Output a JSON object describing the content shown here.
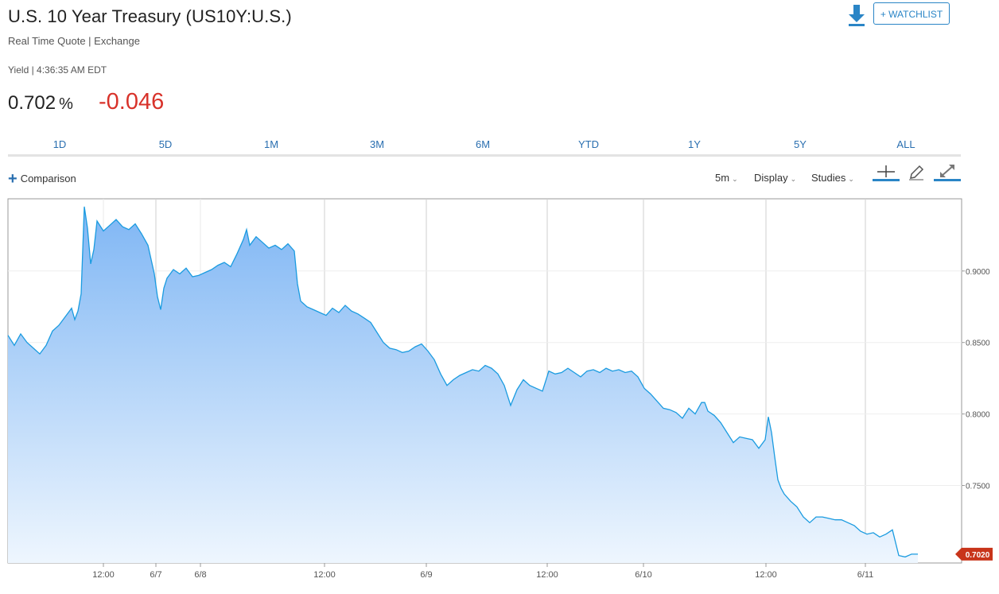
{
  "header": {
    "title": "U.S. 10 Year Treasury (US10Y:U.S.)",
    "subtitle": "Real Time Quote | Exchange",
    "yield_line": "Yield | 4:36:35 AM EDT",
    "price": "0.702",
    "price_unit": "%",
    "change": "-0.046",
    "change_color": "#d8322a",
    "watchlist_label": "+ WATCHLIST",
    "download_icon": "download-icon"
  },
  "ranges": [
    "1D",
    "5D",
    "1M",
    "3M",
    "6M",
    "YTD",
    "1Y",
    "5Y",
    "ALL"
  ],
  "toolbar": {
    "comparison_label": "Comparison",
    "interval_label": "5m",
    "display_label": "Display",
    "studies_label": "Studies",
    "icons": [
      "crosshair-icon",
      "draw-pencil-icon",
      "expand-icon"
    ]
  },
  "chart_data": {
    "type": "area",
    "series": [
      {
        "name": "US10Y",
        "color": "#1a9be0"
      }
    ],
    "x_tick_labels": [
      "12:00",
      "6/7",
      "6/8",
      "12:00",
      "6/9",
      "12:00",
      "6/10",
      "12:00",
      "6/11"
    ],
    "y_tick_labels": [
      "0.9000",
      "0.8500",
      "0.8000",
      "0.7500"
    ],
    "ylim": [
      0.6958,
      0.9505
    ],
    "last_value_label": "0.7020",
    "last_value": 0.702,
    "last_label_color": "#c8341a",
    "points": [
      [
        0,
        0.855
      ],
      [
        2,
        0.848
      ],
      [
        4,
        0.856
      ],
      [
        6,
        0.85
      ],
      [
        8,
        0.846
      ],
      [
        10,
        0.842
      ],
      [
        12,
        0.848
      ],
      [
        14,
        0.858
      ],
      [
        16,
        0.862
      ],
      [
        18,
        0.868
      ],
      [
        20,
        0.874
      ],
      [
        21,
        0.866
      ],
      [
        22,
        0.872
      ],
      [
        23,
        0.884
      ],
      [
        24,
        0.945
      ],
      [
        25,
        0.93
      ],
      [
        26,
        0.905
      ],
      [
        27,
        0.915
      ],
      [
        28,
        0.935
      ],
      [
        30,
        0.928
      ],
      [
        32,
        0.932
      ],
      [
        34,
        0.936
      ],
      [
        36,
        0.931
      ],
      [
        38,
        0.929
      ],
      [
        40,
        0.933
      ],
      [
        42,
        0.926
      ],
      [
        44,
        0.918
      ],
      [
        46,
        0.898
      ],
      [
        47,
        0.882
      ],
      [
        48,
        0.873
      ],
      [
        49,
        0.888
      ],
      [
        50,
        0.895
      ],
      [
        52,
        0.901
      ],
      [
        54,
        0.898
      ],
      [
        56,
        0.902
      ],
      [
        58,
        0.896
      ],
      [
        60,
        0.897
      ],
      [
        62,
        0.899
      ],
      [
        64,
        0.901
      ],
      [
        66,
        0.904
      ],
      [
        68,
        0.906
      ],
      [
        70,
        0.903
      ],
      [
        72,
        0.912
      ],
      [
        74,
        0.922
      ],
      [
        75,
        0.929
      ],
      [
        76,
        0.918
      ],
      [
        78,
        0.924
      ],
      [
        80,
        0.92
      ],
      [
        82,
        0.916
      ],
      [
        84,
        0.918
      ],
      [
        86,
        0.915
      ],
      [
        88,
        0.919
      ],
      [
        90,
        0.914
      ],
      [
        91,
        0.891
      ],
      [
        92,
        0.879
      ],
      [
        94,
        0.875
      ],
      [
        96,
        0.873
      ],
      [
        98,
        0.871
      ],
      [
        100,
        0.869
      ],
      [
        102,
        0.874
      ],
      [
        104,
        0.871
      ],
      [
        106,
        0.876
      ],
      [
        108,
        0.872
      ],
      [
        110,
        0.87
      ],
      [
        112,
        0.867
      ],
      [
        114,
        0.864
      ],
      [
        116,
        0.857
      ],
      [
        118,
        0.85
      ],
      [
        120,
        0.846
      ],
      [
        122,
        0.845
      ],
      [
        124,
        0.843
      ],
      [
        126,
        0.844
      ],
      [
        128,
        0.847
      ],
      [
        130,
        0.849
      ],
      [
        132,
        0.844
      ],
      [
        134,
        0.838
      ],
      [
        136,
        0.828
      ],
      [
        138,
        0.82
      ],
      [
        140,
        0.824
      ],
      [
        142,
        0.827
      ],
      [
        144,
        0.829
      ],
      [
        146,
        0.831
      ],
      [
        148,
        0.83
      ],
      [
        150,
        0.834
      ],
      [
        152,
        0.832
      ],
      [
        154,
        0.828
      ],
      [
        156,
        0.82
      ],
      [
        158,
        0.806
      ],
      [
        160,
        0.817
      ],
      [
        162,
        0.824
      ],
      [
        164,
        0.82
      ],
      [
        166,
        0.818
      ],
      [
        168,
        0.816
      ],
      [
        170,
        0.83
      ],
      [
        172,
        0.828
      ],
      [
        174,
        0.829
      ],
      [
        176,
        0.832
      ],
      [
        178,
        0.829
      ],
      [
        180,
        0.826
      ],
      [
        182,
        0.83
      ],
      [
        184,
        0.831
      ],
      [
        186,
        0.829
      ],
      [
        188,
        0.832
      ],
      [
        190,
        0.83
      ],
      [
        192,
        0.831
      ],
      [
        194,
        0.829
      ],
      [
        196,
        0.83
      ],
      [
        198,
        0.826
      ],
      [
        200,
        0.818
      ],
      [
        202,
        0.814
      ],
      [
        204,
        0.809
      ],
      [
        206,
        0.804
      ],
      [
        208,
        0.803
      ],
      [
        210,
        0.801
      ],
      [
        212,
        0.797
      ],
      [
        214,
        0.804
      ],
      [
        216,
        0.8
      ],
      [
        218,
        0.808
      ],
      [
        219,
        0.808
      ],
      [
        220,
        0.802
      ],
      [
        222,
        0.799
      ],
      [
        224,
        0.794
      ],
      [
        226,
        0.787
      ],
      [
        228,
        0.78
      ],
      [
        230,
        0.784
      ],
      [
        232,
        0.783
      ],
      [
        234,
        0.782
      ],
      [
        236,
        0.776
      ],
      [
        238,
        0.782
      ],
      [
        239,
        0.798
      ],
      [
        240,
        0.787
      ],
      [
        241,
        0.77
      ],
      [
        242,
        0.754
      ],
      [
        243,
        0.748
      ],
      [
        244,
        0.744
      ],
      [
        246,
        0.739
      ],
      [
        248,
        0.735
      ],
      [
        250,
        0.728
      ],
      [
        252,
        0.724
      ],
      [
        254,
        0.728
      ],
      [
        256,
        0.728
      ],
      [
        258,
        0.727
      ],
      [
        260,
        0.726
      ],
      [
        262,
        0.726
      ],
      [
        264,
        0.724
      ],
      [
        266,
        0.722
      ],
      [
        268,
        0.718
      ],
      [
        270,
        0.716
      ],
      [
        272,
        0.717
      ],
      [
        274,
        0.714
      ],
      [
        276,
        0.716
      ],
      [
        278,
        0.719
      ],
      [
        280,
        0.701
      ],
      [
        282,
        0.7
      ],
      [
        284,
        0.702
      ],
      [
        286,
        0.702
      ]
    ]
  }
}
